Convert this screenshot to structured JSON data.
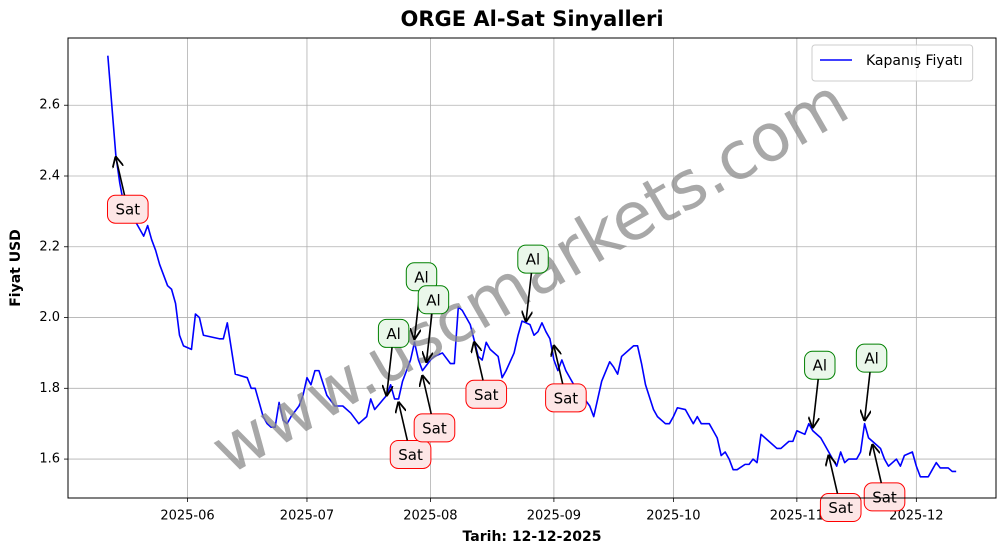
{
  "chart_data": {
    "type": "line",
    "title": "ORGE Al-Sat Sinyalleri",
    "xlabel": "Tarih: 12-12-2025",
    "ylabel": "Fiyat USD",
    "watermark": "www.uscmarkets.com",
    "legend": "upper right",
    "grid": true,
    "xlim": [
      122,
      355
    ],
    "ylim": [
      1.49,
      2.79
    ],
    "xticks": [
      {
        "value": 152,
        "label": "2025-06"
      },
      {
        "value": 182,
        "label": "2025-07"
      },
      {
        "value": 213,
        "label": "2025-08"
      },
      {
        "value": 244,
        "label": "2025-09"
      },
      {
        "value": 274,
        "label": "2025-10"
      },
      {
        "value": 305,
        "label": "2025-11"
      },
      {
        "value": 335,
        "label": "2025-12"
      }
    ],
    "yticks": [
      1.6,
      1.8,
      {
        "value": 2,
        "label": "2.0"
      },
      2.2,
      2.4,
      2.6
    ],
    "x": [
      132,
      134,
      135,
      136,
      138,
      139,
      141,
      142,
      143,
      144,
      145,
      146,
      147,
      148,
      149,
      150,
      151,
      153,
      154,
      155,
      156,
      160,
      161,
      162,
      164,
      167,
      168,
      169,
      170,
      171,
      172,
      173,
      174,
      175,
      176,
      177,
      178,
      180,
      181,
      182,
      183,
      184,
      185,
      187,
      189,
      191,
      193,
      195,
      197,
      198,
      199,
      202,
      203,
      204,
      205,
      206,
      208,
      209,
      210,
      211,
      213,
      214,
      216,
      218,
      219,
      220,
      221,
      223,
      225,
      226,
      227,
      228,
      230,
      231,
      232,
      234,
      235,
      236,
      238,
      239,
      240,
      241,
      242,
      243,
      244,
      245,
      246,
      247,
      249,
      251,
      253,
      254,
      255,
      256,
      258,
      259,
      260,
      261,
      264,
      265,
      266,
      267,
      269,
      270,
      272,
      273,
      274,
      275,
      277,
      278,
      279,
      280,
      281,
      283,
      284,
      285,
      286,
      287,
      288,
      289,
      290,
      292,
      293,
      294,
      295,
      296,
      298,
      300,
      301,
      303,
      304,
      305,
      307,
      308,
      309,
      311,
      312,
      314,
      315,
      316,
      317,
      318,
      320,
      321,
      322,
      323,
      324,
      326,
      327,
      328,
      330,
      331,
      332,
      334,
      335,
      336,
      338,
      339,
      340,
      341,
      343,
      344,
      345
    ],
    "series": [
      {
        "name": "Kapanış Fiyatı",
        "color": "#0000ff",
        "values": [
          2.74,
          2.46,
          2.38,
          2.32,
          2.29,
          2.27,
          2.23,
          2.26,
          2.22,
          2.19,
          2.15,
          2.12,
          2.09,
          2.08,
          2.04,
          1.95,
          1.92,
          1.91,
          2.01,
          2.0,
          1.95,
          1.94,
          1.94,
          1.985,
          1.84,
          1.83,
          1.8,
          1.8,
          1.76,
          1.72,
          1.7,
          1.69,
          1.69,
          1.76,
          1.71,
          1.7,
          1.72,
          1.75,
          1.78,
          1.83,
          1.81,
          1.85,
          1.85,
          1.78,
          1.75,
          1.75,
          1.73,
          1.7,
          1.72,
          1.77,
          1.74,
          1.78,
          1.81,
          1.77,
          1.77,
          1.82,
          1.88,
          1.93,
          1.88,
          1.85,
          1.88,
          1.89,
          1.9,
          1.87,
          1.87,
          2.03,
          2.02,
          1.98,
          1.89,
          1.88,
          1.93,
          1.91,
          1.89,
          1.83,
          1.85,
          1.9,
          1.95,
          1.99,
          1.98,
          1.95,
          1.96,
          1.985,
          1.96,
          1.94,
          1.88,
          1.85,
          1.88,
          1.85,
          1.81,
          1.78,
          1.75,
          1.72,
          1.77,
          1.82,
          1.875,
          1.86,
          1.84,
          1.89,
          1.92,
          1.92,
          1.87,
          1.81,
          1.74,
          1.72,
          1.7,
          1.7,
          1.72,
          1.745,
          1.74,
          1.72,
          1.7,
          1.72,
          1.7,
          1.7,
          1.68,
          1.66,
          1.61,
          1.62,
          1.6,
          1.57,
          1.57,
          1.585,
          1.585,
          1.6,
          1.59,
          1.67,
          1.65,
          1.63,
          1.63,
          1.65,
          1.65,
          1.68,
          1.67,
          1.7,
          1.68,
          1.66,
          1.64,
          1.6,
          1.58,
          1.62,
          1.59,
          1.6,
          1.6,
          1.62,
          1.7,
          1.66,
          1.65,
          1.63,
          1.6,
          1.58,
          1.6,
          1.58,
          1.61,
          1.62,
          1.58,
          1.55,
          1.55,
          1.57,
          1.59,
          1.575,
          1.575,
          1.565,
          1.565
        ]
      }
    ],
    "annotations": [
      {
        "text": "Sat",
        "x": 134,
        "y": 2.453,
        "color": "red"
      },
      {
        "text": "Al",
        "x": 202,
        "y": 1.78,
        "color": "green"
      },
      {
        "text": "Sat",
        "x": 205,
        "y": 1.76,
        "color": "red"
      },
      {
        "text": "Al",
        "x": 209,
        "y": 1.94,
        "color": "green"
      },
      {
        "text": "Al",
        "x": 212,
        "y": 1.875,
        "color": "green"
      },
      {
        "text": "Sat",
        "x": 211,
        "y": 1.835,
        "color": "red"
      },
      {
        "text": "Sat",
        "x": 224,
        "y": 1.93,
        "color": "red"
      },
      {
        "text": "Al",
        "x": 237,
        "y": 1.99,
        "color": "green"
      },
      {
        "text": "Sat",
        "x": 244,
        "y": 1.92,
        "color": "red"
      },
      {
        "text": "Al",
        "x": 309,
        "y": 1.69,
        "color": "green"
      },
      {
        "text": "Sat",
        "x": 313,
        "y": 1.61,
        "color": "red"
      },
      {
        "text": "Al",
        "x": 322,
        "y": 1.71,
        "color": "green"
      },
      {
        "text": "Sat",
        "x": 324,
        "y": 1.64,
        "color": "red"
      }
    ]
  }
}
